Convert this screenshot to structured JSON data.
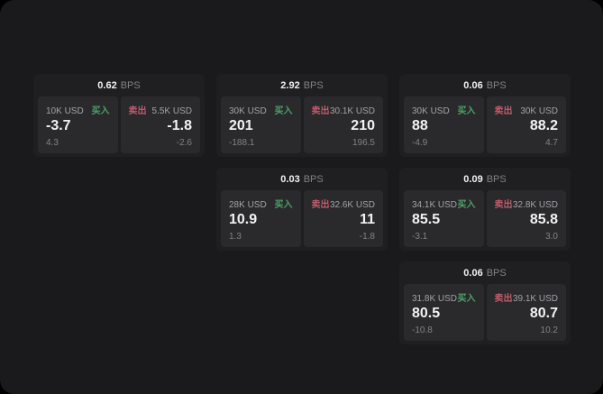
{
  "labels": {
    "bps": "BPS",
    "buy": "买入",
    "sell": "卖出"
  },
  "colors": {
    "page_bg": "#000000",
    "panel_bg": "#1a1a1c",
    "card_bg": "#1f1f21",
    "cell_bg": "#2a2a2c",
    "text_primary": "#f2f2f3",
    "text_label": "#a3a3a7",
    "text_muted": "#828286",
    "buy_green": "#4da167",
    "sell_red": "#c25a6b"
  },
  "cards": [
    {
      "bps": "0.62",
      "buy": {
        "size": "10K USD",
        "price": "-3.7",
        "delta": "4.3"
      },
      "sell": {
        "size": "5.5K USD",
        "price": "-1.8",
        "delta": "-2.6"
      }
    },
    {
      "bps": "2.92",
      "buy": {
        "size": "30K USD",
        "price": "201",
        "delta": "-188.1"
      },
      "sell": {
        "size": "30.1K USD",
        "price": "210",
        "delta": "196.5"
      }
    },
    {
      "bps": "0.06",
      "buy": {
        "size": "30K USD",
        "price": "88",
        "delta": "-4.9"
      },
      "sell": {
        "size": "30K USD",
        "price": "88.2",
        "delta": "4.7"
      }
    },
    {
      "bps": "0.03",
      "buy": {
        "size": "28K USD",
        "price": "10.9",
        "delta": "1.3"
      },
      "sell": {
        "size": "32.6K USD",
        "price": "11",
        "delta": "-1.8"
      }
    },
    {
      "bps": "0.09",
      "buy": {
        "size": "34.1K USD",
        "price": "85.5",
        "delta": "-3.1"
      },
      "sell": {
        "size": "32.8K USD",
        "price": "85.8",
        "delta": "3.0"
      }
    },
    {
      "bps": "0.06",
      "buy": {
        "size": "31.8K USD",
        "price": "80.5",
        "delta": "-10.8"
      },
      "sell": {
        "size": "39.1K USD",
        "price": "80.7",
        "delta": "10.2"
      }
    }
  ]
}
